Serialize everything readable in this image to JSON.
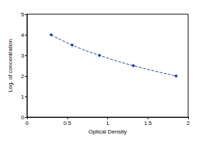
{
  "chart_data": {
    "type": "line",
    "x": [
      0.3,
      0.56,
      0.9,
      1.32,
      1.85
    ],
    "values": [
      4,
      3.5,
      3,
      2.5,
      2
    ],
    "xlabel": "Optical Density",
    "ylabel": "Log. of concentration",
    "xlim": [
      0,
      2
    ],
    "xticks": [
      0,
      0.5,
      1,
      1.5,
      2
    ],
    "ylim": [
      0,
      5
    ],
    "yticks": [
      0,
      1,
      2,
      3,
      4,
      5
    ],
    "color": "#1f3f9f",
    "marker": "diamond",
    "line_style": "dashed",
    "grid": false
  }
}
